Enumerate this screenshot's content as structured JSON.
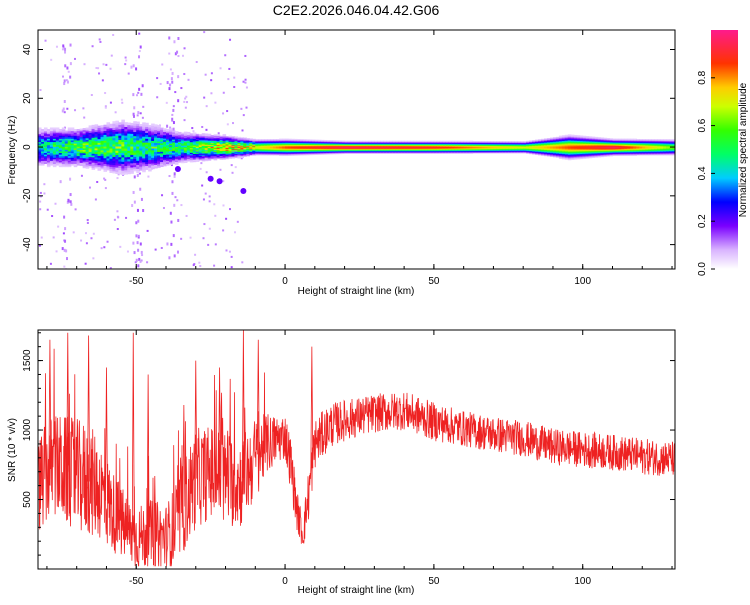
{
  "figure_title": "C2E2.2026.046.04.42.G06",
  "colors": {
    "snr_line": "#ee2222",
    "axis": "#000000",
    "background": "#ffffff"
  },
  "chart_data": [
    {
      "type": "heatmap",
      "title": "C2E2.2026.046.04.42.G06",
      "xlabel": "Height of straight line (km)",
      "ylabel": "Frequency (Hz)",
      "xlim": [
        -83,
        131
      ],
      "ylim": [
        -50,
        48
      ],
      "xticks": [
        -50,
        0,
        50,
        100
      ],
      "xtick_labels": [
        "-50",
        "0",
        "50",
        "100"
      ],
      "yticks": [
        -40,
        -20,
        0,
        20,
        40
      ],
      "ytick_labels": [
        "-40",
        "-20",
        "0",
        "20",
        "40"
      ],
      "band": [
        {
          "x": -83,
          "half_width_hz": 5,
          "amp": 0.45
        },
        {
          "x": -70,
          "half_width_hz": 5,
          "amp": 0.55
        },
        {
          "x": -55,
          "half_width_hz": 7,
          "amp": 0.55
        },
        {
          "x": -45,
          "half_width_hz": 6,
          "amp": 0.5
        },
        {
          "x": -35,
          "half_width_hz": 4,
          "amp": 0.5
        },
        {
          "x": -20,
          "half_width_hz": 3,
          "amp": 0.75
        },
        {
          "x": -10,
          "half_width_hz": 2,
          "amp": 0.7
        },
        {
          "x": 0,
          "half_width_hz": 2,
          "amp": 0.85
        },
        {
          "x": 20,
          "half_width_hz": 1.5,
          "amp": 0.95
        },
        {
          "x": 50,
          "half_width_hz": 1.5,
          "amp": 0.9
        },
        {
          "x": 80,
          "half_width_hz": 1.5,
          "amp": 0.7
        },
        {
          "x": 95,
          "half_width_hz": 3,
          "amp": 0.85
        },
        {
          "x": 110,
          "half_width_hz": 2,
          "amp": 0.95
        },
        {
          "x": 131,
          "half_width_hz": 2,
          "amp": 0.6
        }
      ]
    },
    {
      "type": "line",
      "xlabel": "Height of straight line (km)",
      "ylabel": "SNR (10 * v/v)",
      "xlim": [
        -83,
        131
      ],
      "ylim": [
        0,
        1720
      ],
      "xticks": [
        -50,
        0,
        50,
        100
      ],
      "xtick_labels": [
        "-50",
        "0",
        "50",
        "100"
      ],
      "yticks": [
        500,
        1000,
        1500
      ],
      "ytick_labels": [
        "500",
        "1000",
        "1500"
      ],
      "series": [
        {
          "name": "SNR",
          "x": [
            -83,
            -78,
            -73,
            -68,
            -63,
            -58,
            -53,
            -50,
            -45,
            -40,
            -37,
            -33,
            -30,
            -25,
            -20,
            -15,
            -10,
            -6,
            -3,
            0,
            2,
            4,
            6,
            8,
            10,
            15,
            20,
            30,
            40,
            45,
            50,
            60,
            70,
            80,
            90,
            100,
            110,
            120,
            131
          ],
          "values": [
            600,
            750,
            700,
            650,
            600,
            420,
            280,
            220,
            250,
            230,
            300,
            500,
            650,
            700,
            650,
            620,
            800,
            900,
            930,
            960,
            750,
            420,
            250,
            550,
            900,
            1030,
            1070,
            1120,
            1140,
            1100,
            1060,
            1010,
            970,
            940,
            880,
            860,
            840,
            810,
            790
          ],
          "noise": [
            350,
            380,
            400,
            420,
            380,
            300,
            250,
            230,
            250,
            240,
            300,
            350,
            360,
            340,
            350,
            330,
            300,
            220,
            180,
            170,
            200,
            150,
            120,
            200,
            180,
            160,
            150,
            140,
            140,
            140,
            140,
            130,
            130,
            130,
            130,
            130,
            130,
            130,
            130
          ],
          "spikes": [
            [
              -79,
              1650
            ],
            [
              -73,
              1700
            ],
            [
              -66,
              1680
            ],
            [
              -60,
              1450
            ],
            [
              -51,
              1700
            ],
            [
              -46,
              1400
            ],
            [
              -34,
              1180
            ],
            [
              -30,
              1500
            ],
            [
              -22,
              1450
            ],
            [
              -14,
              1720
            ],
            [
              -9,
              1650
            ],
            [
              9,
              1600
            ]
          ]
        }
      ]
    }
  ],
  "colorbar": {
    "label": "Normalized spectral amplitude",
    "range": [
      0,
      1
    ],
    "ticks": [
      0,
      0.2,
      0.4,
      0.6,
      0.8
    ],
    "tick_labels": [
      "0.0",
      "0.2",
      "0.4",
      "0.6",
      "0.8"
    ]
  }
}
